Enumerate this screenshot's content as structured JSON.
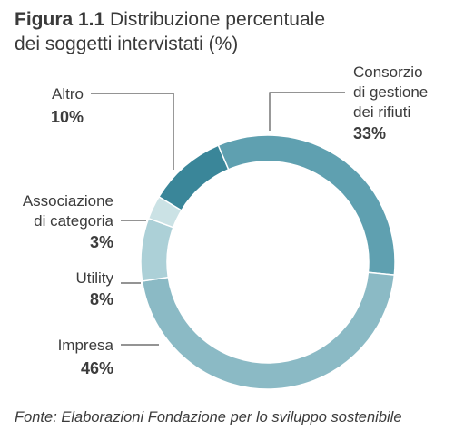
{
  "figure": {
    "number": "Figura 1.1",
    "title_line1": "Distribuzione percentuale",
    "title_line2": "dei soggetti intervistati (%)"
  },
  "source": "Fonte: Elaborazioni Fondazione per lo sviluppo sostenibile",
  "chart_data": {
    "type": "pie",
    "donut": true,
    "categories": [
      "Consorzio di gestione dei rifiuti",
      "Impresa",
      "Utility",
      "Associazione di categoria",
      "Altro"
    ],
    "values": [
      33,
      46,
      8,
      3,
      10
    ],
    "unit": "%",
    "labels": [
      {
        "lines": [
          "Consorzio",
          "di gestione",
          "dei rifiuti"
        ],
        "value_label": "33%"
      },
      {
        "lines": [
          "Impresa"
        ],
        "value_label": "46%"
      },
      {
        "lines": [
          "Utility"
        ],
        "value_label": "8%"
      },
      {
        "lines": [
          "Associazione",
          "di categoria"
        ],
        "value_label": "3%"
      },
      {
        "lines": [
          "Altro"
        ],
        "value_label": "10%"
      }
    ],
    "colors": [
      "#5fa0b0",
      "#8bbac5",
      "#acd0d7",
      "#cbe2e5",
      "#3a8699"
    ]
  }
}
